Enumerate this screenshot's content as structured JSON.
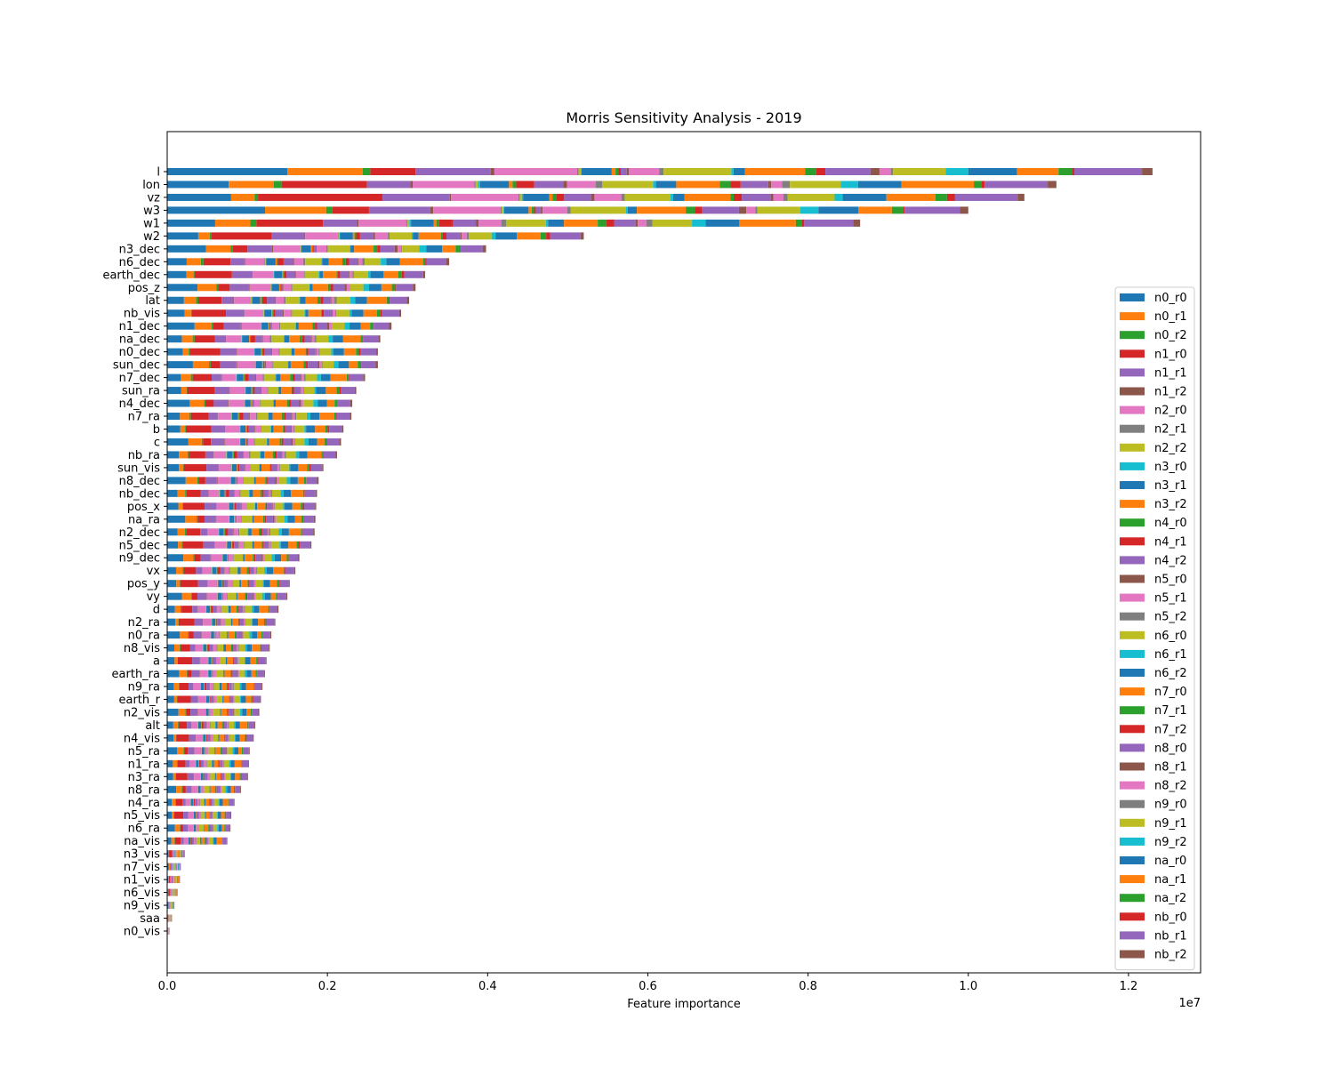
{
  "chart_data": {
    "type": "bar",
    "orientation": "horizontal",
    "stacked": true,
    "title": "Morris Sensitivity Analysis - 2019",
    "xlabel": "Feature importance",
    "ylabel": "",
    "x_scale_note": "1e7",
    "xlim": [
      0,
      12900000.0
    ],
    "xticks": [
      0,
      2000000,
      4000000,
      6000000,
      8000000,
      10000000,
      12000000
    ],
    "xtick_labels": [
      "0.0",
      "0.2",
      "0.4",
      "0.6",
      "0.8",
      "1.0",
      "1.2"
    ],
    "grid": false,
    "legend_position": "right",
    "series_names": [
      "n0_r0",
      "n0_r1",
      "n0_r2",
      "n1_r0",
      "n1_r1",
      "n1_r2",
      "n2_r0",
      "n2_r1",
      "n2_r2",
      "n3_r0",
      "n3_r1",
      "n3_r2",
      "n4_r0",
      "n4_r1",
      "n4_r2",
      "n5_r0",
      "n5_r1",
      "n5_r2",
      "n6_r0",
      "n6_r1",
      "n6_r2",
      "n7_r0",
      "n7_r1",
      "n7_r2",
      "n8_r0",
      "n8_r1",
      "n8_r2",
      "n9_r0",
      "n9_r1",
      "n9_r2",
      "na_r0",
      "na_r1",
      "na_r2",
      "nb_r0",
      "nb_r1",
      "nb_r2"
    ],
    "series_colors": [
      "#1f77b4",
      "#ff7f0e",
      "#2ca02c",
      "#d62728",
      "#9467bd",
      "#8c564b",
      "#e377c2",
      "#7f7f7f",
      "#bcbd22",
      "#17becf",
      "#1f77b4",
      "#ff7f0e",
      "#2ca02c",
      "#d62728",
      "#9467bd",
      "#8c564b",
      "#e377c2",
      "#7f7f7f",
      "#bcbd22",
      "#17becf",
      "#1f77b4",
      "#ff7f0e",
      "#2ca02c",
      "#d62728",
      "#9467bd",
      "#8c564b",
      "#e377c2",
      "#7f7f7f",
      "#bcbd22",
      "#17becf",
      "#1f77b4",
      "#ff7f0e",
      "#2ca02c",
      "#d62728",
      "#9467bd",
      "#8c564b"
    ],
    "categories": [
      "l",
      "lon",
      "vz",
      "w3",
      "w1",
      "w2",
      "n3_dec",
      "n6_dec",
      "earth_dec",
      "pos_z",
      "lat",
      "nb_vis",
      "n1_dec",
      "na_dec",
      "n0_dec",
      "sun_dec",
      "n7_dec",
      "sun_ra",
      "n4_dec",
      "n7_ra",
      "b",
      "c",
      "nb_ra",
      "sun_vis",
      "n8_dec",
      "nb_dec",
      "pos_x",
      "na_ra",
      "n2_dec",
      "n5_dec",
      "n9_dec",
      "vx",
      "pos_y",
      "vy",
      "d",
      "n2_ra",
      "n0_ra",
      "n8_vis",
      "a",
      "earth_ra",
      "n9_ra",
      "earth_r",
      "n2_vis",
      "alt",
      "n4_vis",
      "n5_ra",
      "n1_ra",
      "n3_ra",
      "n8_ra",
      "n4_ra",
      "n5_vis",
      "n6_ra",
      "na_vis",
      "n3_vis",
      "n7_vis",
      "n1_vis",
      "n6_vis",
      "n9_vis",
      "saa",
      "n0_vis"
    ],
    "totals": [
      12300000,
      11100000,
      10700000,
      10000000,
      8650000,
      5200000,
      3980000,
      3520000,
      3220000,
      3100000,
      3020000,
      2920000,
      2800000,
      2660000,
      2630000,
      2630000,
      2470000,
      2360000,
      2310000,
      2300000,
      2200000,
      2170000,
      2120000,
      1950000,
      1890000,
      1870000,
      1860000,
      1850000,
      1840000,
      1800000,
      1650000,
      1600000,
      1530000,
      1500000,
      1390000,
      1350000,
      1300000,
      1280000,
      1240000,
      1220000,
      1190000,
      1170000,
      1150000,
      1100000,
      1080000,
      1030000,
      1020000,
      1010000,
      920000,
      840000,
      800000,
      790000,
      750000,
      220000,
      170000,
      160000,
      130000,
      90000,
      60000,
      30000
    ],
    "weight_patterns": [
      [
        16,
        10,
        1,
        6,
        10,
        0.5,
        11,
        0.2,
        0.3,
        0.1,
        4,
        0.5,
        0.4,
        0.3,
        0.8,
        0.3,
        4,
        0.6,
        9,
        0.3,
        1.5,
        8,
        1.5,
        1.2,
        6,
        1.2,
        1.5,
        0.3,
        7,
        3,
        6.5,
        5.5,
        1.8,
        0.3,
        9,
        1.4
      ],
      [
        8.5,
        6.2,
        1.1,
        11.8,
        6,
        0.3,
        8.5,
        0.2,
        0.3,
        0.3,
        4,
        0.5,
        0.5,
        2.5,
        4,
        0.5,
        4,
        0.9,
        7,
        0.4,
        2.8,
        6,
        1.5,
        1.4,
        3.8,
        0.4,
        1.5,
        1.1,
        7,
        2.4,
        6,
        10,
        1,
        0.5,
        8.7,
        1.2
      ],
      [
        9.5,
        3.5,
        0.5,
        18.5,
        10,
        0.2,
        10,
        0.2,
        0.3,
        0.2,
        3.9,
        0.5,
        0.5,
        1.2,
        4,
        0.5,
        4,
        0.5,
        6.8,
        0.4,
        1.7,
        6.8,
        0.5,
        1.2,
        4.3,
        0.4,
        1.5,
        0.6,
        7,
        1.2,
        6.5,
        7.3,
        1.7,
        1.2,
        9.3,
        1
      ]
    ]
  }
}
